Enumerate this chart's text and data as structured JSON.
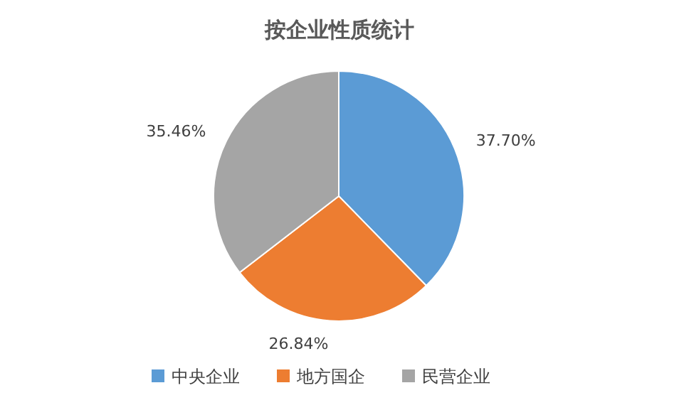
{
  "chart_data": {
    "type": "pie",
    "title": "按企业性质统计",
    "categories": [
      "中央企业",
      "地方国企",
      "民营企业"
    ],
    "values": [
      37.7,
      26.84,
      35.46
    ],
    "value_labels": [
      "37.70%",
      "26.84%",
      "35.46%"
    ],
    "colors": [
      "#5b9bd5",
      "#ed7d31",
      "#a5a5a5"
    ],
    "legend": "bottom"
  }
}
